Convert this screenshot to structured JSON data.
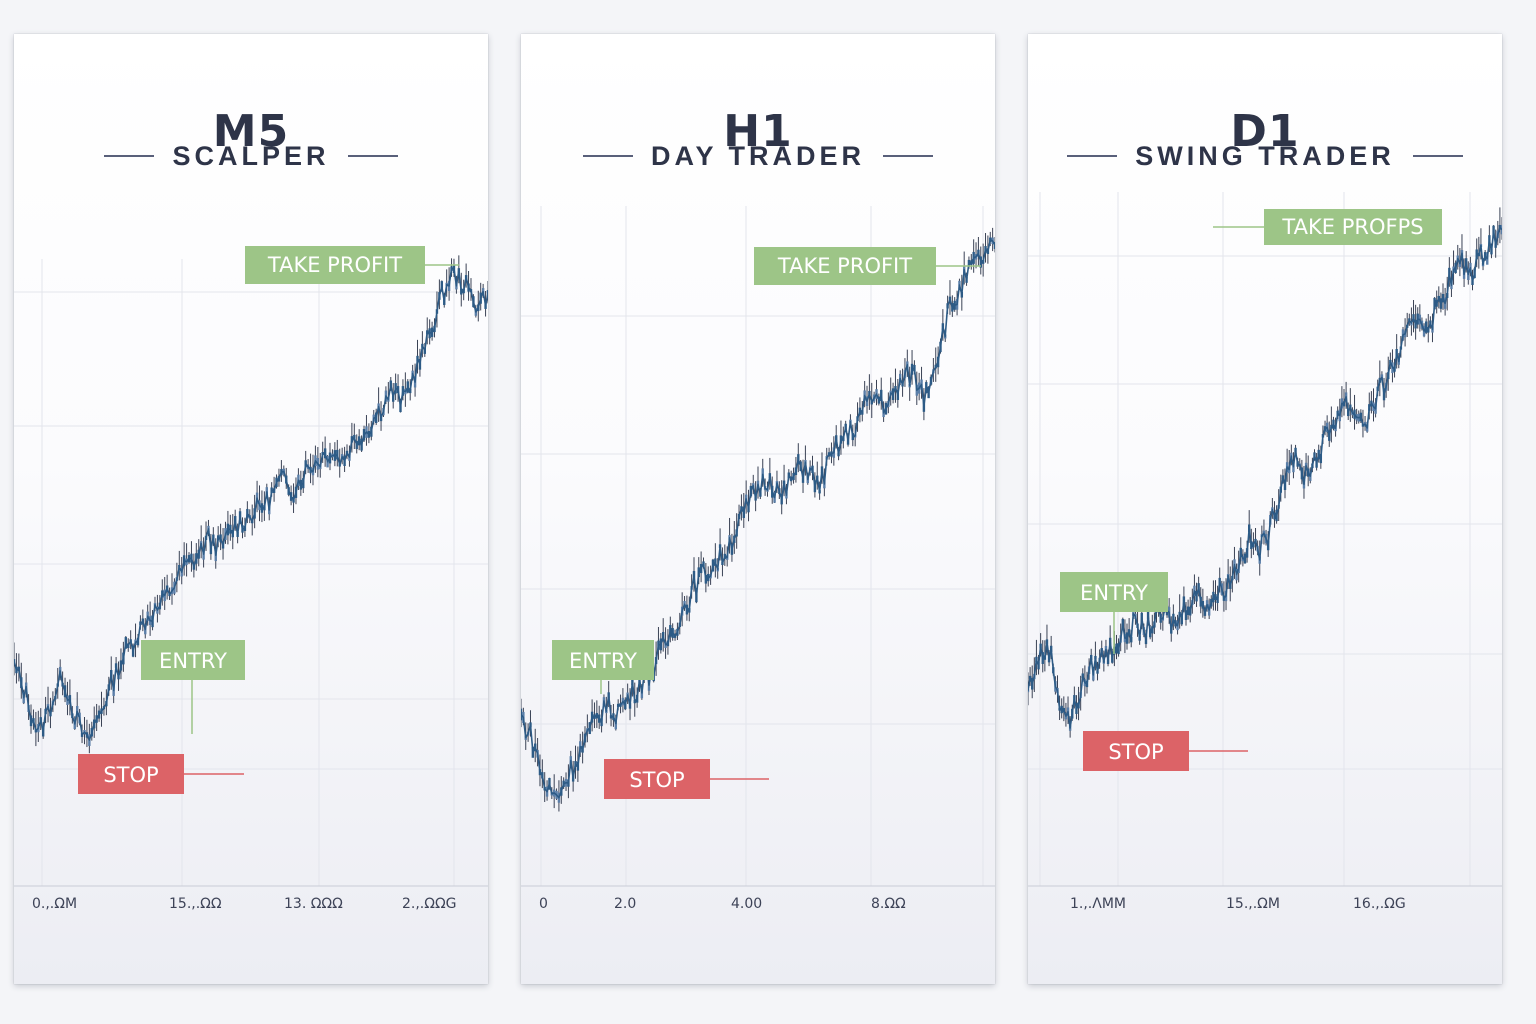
{
  "panels": [
    {
      "timeframe": "M5",
      "style": "SCALPER",
      "labels": {
        "take_profit": "TAKE PROFIT",
        "entry": "ENTRY",
        "stop": "STOP"
      },
      "x_ticks": [
        "0.,.ΩM",
        "15.,.ΩΩ",
        "13. ΩΩΩ",
        "2.,.ΩΩG"
      ],
      "colors": {
        "take_profit": "#9dc587",
        "entry": "#9dc587",
        "stop": "#dc6367",
        "series": "#2d5b86"
      },
      "chart_data": {
        "type": "line",
        "series": [
          {
            "values": [
              0.18,
              0.12,
              0.04,
              0.1,
              0.16,
              0.08,
              0.02,
              0.08,
              0.14,
              0.2,
              0.24,
              0.28,
              0.3,
              0.34,
              0.38,
              0.4,
              0.44,
              0.42,
              0.46,
              0.48,
              0.5,
              0.52,
              0.56,
              0.54,
              0.58,
              0.6,
              0.62,
              0.6,
              0.64,
              0.66,
              0.7,
              0.74,
              0.72,
              0.78,
              0.84,
              0.92,
              0.98,
              0.96,
              0.92,
              0.94
            ]
          }
        ]
      }
    },
    {
      "timeframe": "H1",
      "style": "DAY TRADER",
      "labels": {
        "take_profit": "TAKE PROFIT",
        "entry": "ENTRY",
        "stop": "STOP"
      },
      "x_ticks": [
        "0",
        "2.0",
        "4.00",
        "8.ΩΩ"
      ],
      "colors": {
        "take_profit": "#9dc587",
        "entry": "#9dc587",
        "stop": "#dc6367",
        "series": "#2d5b86"
      },
      "chart_data": {
        "type": "line",
        "series": [
          {
            "values": [
              0.16,
              0.12,
              0.04,
              0.02,
              0.06,
              0.1,
              0.14,
              0.18,
              0.17,
              0.19,
              0.22,
              0.24,
              0.28,
              0.32,
              0.36,
              0.4,
              0.42,
              0.44,
              0.48,
              0.52,
              0.56,
              0.58,
              0.54,
              0.58,
              0.6,
              0.56,
              0.6,
              0.64,
              0.66,
              0.7,
              0.72,
              0.7,
              0.74,
              0.76,
              0.72,
              0.78,
              0.86,
              0.9,
              0.94,
              0.96,
              0.98
            ]
          }
        ]
      }
    },
    {
      "timeframe": "D1",
      "style": "SWING TRADER",
      "labels": {
        "take_profit": "TAKE PROFPS",
        "entry": "ENTRY",
        "stop": "STOP"
      },
      "x_ticks": [
        "1.,.ΛMM",
        "15.,.ΩM",
        "16.,.ΩG"
      ],
      "colors": {
        "take_profit": "#9dc587",
        "entry": "#9dc587",
        "stop": "#dc6367",
        "series": "#2d5b86"
      },
      "chart_data": {
        "type": "line",
        "series": [
          {
            "values": [
              0.12,
              0.18,
              0.2,
              0.1,
              0.06,
              0.12,
              0.16,
              0.18,
              0.2,
              0.22,
              0.24,
              0.23,
              0.25,
              0.26,
              0.24,
              0.28,
              0.3,
              0.28,
              0.3,
              0.32,
              0.36,
              0.4,
              0.38,
              0.42,
              0.5,
              0.56,
              0.52,
              0.54,
              0.58,
              0.62,
              0.66,
              0.64,
              0.62,
              0.66,
              0.7,
              0.74,
              0.78,
              0.82,
              0.8,
              0.84,
              0.88,
              0.92,
              0.9,
              0.93,
              0.96,
              0.98
            ]
          }
        ]
      }
    }
  ]
}
